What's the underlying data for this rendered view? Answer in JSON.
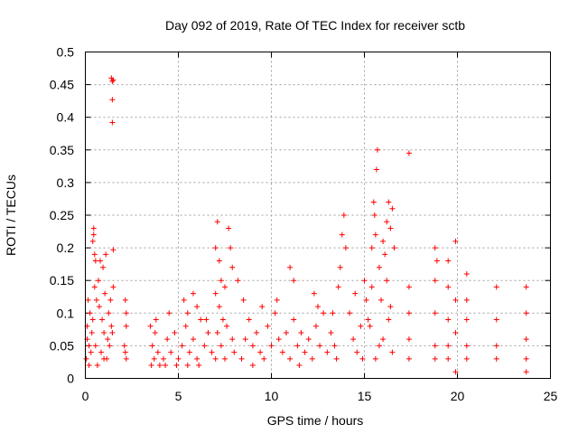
{
  "chart_data": {
    "type": "scatter",
    "title": "Day 092 of 2019, Rate Of TEC Index for receiver sctb",
    "xlabel": "GPS time / hours",
    "ylabel": "ROTI / TECUs",
    "xlim": [
      0,
      25
    ],
    "ylim": [
      0,
      0.5
    ],
    "x_ticks": [
      0,
      5,
      10,
      15,
      20,
      25
    ],
    "y_ticks": [
      0,
      0.05,
      0.1,
      0.15,
      0.2,
      0.25,
      0.3,
      0.35,
      0.4,
      0.45,
      0.5
    ],
    "x_tick_labels": [
      "0",
      "5",
      "10",
      "15",
      "20",
      "25"
    ],
    "y_tick_labels": [
      "0",
      "0.05",
      "0.1",
      "0.15",
      "0.2",
      "0.25",
      "0.3",
      "0.35",
      "0.4",
      "0.45",
      "0.5"
    ],
    "grid": true,
    "legend": "none",
    "marker": "+",
    "color": "#ff0000",
    "series": [
      {
        "points": [
          [
            0.05,
            0.03
          ],
          [
            0.1,
            0.08
          ],
          [
            0.15,
            0.12
          ],
          [
            0.2,
            0.05
          ],
          [
            0.25,
            0.1
          ],
          [
            0.3,
            0.04
          ],
          [
            0.35,
            0.07
          ],
          [
            0.2,
            0.02
          ],
          [
            0.1,
            0.06
          ],
          [
            0.4,
            0.21
          ],
          [
            0.45,
            0.22
          ],
          [
            0.5,
            0.19
          ],
          [
            0.45,
            0.23
          ],
          [
            0.55,
            0.18
          ],
          [
            0.5,
            0.14
          ],
          [
            0.6,
            0.12
          ],
          [
            0.4,
            0.09
          ],
          [
            0.55,
            0.05
          ],
          [
            0.7,
            0.15
          ],
          [
            0.75,
            0.11
          ],
          [
            0.8,
            0.18
          ],
          [
            0.9,
            0.09
          ],
          [
            0.95,
            0.17
          ],
          [
            1.0,
            0.07
          ],
          [
            1.05,
            0.13
          ],
          [
            1.1,
            0.19
          ],
          [
            1.2,
            0.06
          ],
          [
            1.25,
            0.1
          ],
          [
            1.3,
            0.05
          ],
          [
            1.35,
            0.12
          ],
          [
            1.4,
            0.08
          ],
          [
            0.85,
            0.04
          ],
          [
            1.15,
            0.03
          ],
          [
            1.45,
            0.07
          ],
          [
            0.65,
            0.02
          ],
          [
            1.0,
            0.03
          ],
          [
            1.4,
            0.46
          ],
          [
            1.45,
            0.455
          ],
          [
            1.5,
            0.457
          ],
          [
            1.45,
            0.427
          ],
          [
            1.45,
            0.392
          ],
          [
            1.5,
            0.197
          ],
          [
            1.5,
            0.14
          ],
          [
            2.1,
            0.05
          ],
          [
            2.15,
            0.04
          ],
          [
            2.2,
            0.03
          ],
          [
            2.2,
            0.08
          ],
          [
            2.15,
            0.12
          ],
          [
            2.2,
            0.1
          ],
          [
            3.5,
            0.08
          ],
          [
            3.6,
            0.05
          ],
          [
            3.7,
            0.03
          ],
          [
            3.8,
            0.09
          ],
          [
            3.9,
            0.04
          ],
          [
            4.0,
            0.02
          ],
          [
            3.55,
            0.02
          ],
          [
            3.75,
            0.07
          ],
          [
            4.2,
            0.03
          ],
          [
            4.4,
            0.06
          ],
          [
            4.6,
            0.04
          ],
          [
            4.8,
            0.07
          ],
          [
            5.0,
            0.03
          ],
          [
            5.2,
            0.05
          ],
          [
            5.4,
            0.08
          ],
          [
            5.6,
            0.04
          ],
          [
            5.8,
            0.06
          ],
          [
            6.0,
            0.03
          ],
          [
            6.2,
            0.09
          ],
          [
            6.4,
            0.05
          ],
          [
            6.6,
            0.07
          ],
          [
            6.8,
            0.04
          ],
          [
            4.3,
            0.02
          ],
          [
            4.9,
            0.02
          ],
          [
            5.5,
            0.02
          ],
          [
            6.1,
            0.02
          ],
          [
            5.3,
            0.12
          ],
          [
            5.5,
            0.1
          ],
          [
            5.8,
            0.13
          ],
          [
            6.0,
            0.11
          ],
          [
            4.5,
            0.1
          ],
          [
            6.5,
            0.09
          ],
          [
            7.0,
            0.2
          ],
          [
            7.1,
            0.24
          ],
          [
            7.2,
            0.18
          ],
          [
            7.3,
            0.15
          ],
          [
            7.0,
            0.13
          ],
          [
            7.2,
            0.11
          ],
          [
            7.4,
            0.09
          ],
          [
            7.1,
            0.07
          ],
          [
            7.3,
            0.05
          ],
          [
            7.5,
            0.03
          ],
          [
            7.6,
            0.08
          ],
          [
            7.8,
            0.2
          ],
          [
            7.9,
            0.17
          ],
          [
            7.7,
            0.23
          ],
          [
            7.9,
            0.06
          ],
          [
            8.0,
            0.04
          ],
          [
            7.5,
            0.14
          ],
          [
            7.0,
            0.03
          ],
          [
            8.2,
            0.15
          ],
          [
            8.4,
            0.03
          ],
          [
            8.6,
            0.06
          ],
          [
            8.8,
            0.09
          ],
          [
            9.0,
            0.05
          ],
          [
            9.2,
            0.07
          ],
          [
            9.4,
            0.04
          ],
          [
            9.6,
            0.03
          ],
          [
            9.8,
            0.08
          ],
          [
            10.0,
            0.05
          ],
          [
            10.2,
            0.1
          ],
          [
            10.4,
            0.06
          ],
          [
            10.6,
            0.04
          ],
          [
            10.8,
            0.07
          ],
          [
            11.0,
            0.03
          ],
          [
            11.2,
            0.09
          ],
          [
            11.4,
            0.05
          ],
          [
            11.6,
            0.07
          ],
          [
            11.8,
            0.04
          ],
          [
            12.0,
            0.06
          ],
          [
            12.2,
            0.03
          ],
          [
            12.4,
            0.08
          ],
          [
            12.6,
            0.05
          ],
          [
            12.8,
            0.1
          ],
          [
            13.0,
            0.04
          ],
          [
            8.5,
            0.12
          ],
          [
            9.5,
            0.11
          ],
          [
            10.3,
            0.12
          ],
          [
            11.0,
            0.17
          ],
          [
            11.2,
            0.15
          ],
          [
            12.3,
            0.13
          ],
          [
            12.5,
            0.11
          ],
          [
            9.0,
            0.02
          ],
          [
            11.5,
            0.02
          ],
          [
            13.2,
            0.07
          ],
          [
            13.4,
            0.05
          ],
          [
            13.6,
            0.14
          ],
          [
            13.8,
            0.22
          ],
          [
            13.9,
            0.25
          ],
          [
            14.0,
            0.2
          ],
          [
            13.7,
            0.17
          ],
          [
            14.2,
            0.1
          ],
          [
            14.4,
            0.06
          ],
          [
            14.6,
            0.04
          ],
          [
            14.8,
            0.08
          ],
          [
            15.0,
            0.15
          ],
          [
            15.1,
            0.12
          ],
          [
            15.2,
            0.09
          ],
          [
            14.9,
            0.03
          ],
          [
            13.5,
            0.03
          ],
          [
            14.5,
            0.13
          ],
          [
            13.3,
            0.1
          ],
          [
            15.3,
            0.08
          ],
          [
            15.4,
            0.2
          ],
          [
            15.5,
            0.27
          ],
          [
            15.55,
            0.25
          ],
          [
            15.6,
            0.22
          ],
          [
            15.65,
            0.32
          ],
          [
            15.7,
            0.35
          ],
          [
            15.8,
            0.17
          ],
          [
            15.9,
            0.12
          ],
          [
            16.0,
            0.21
          ],
          [
            16.1,
            0.19
          ],
          [
            16.2,
            0.24
          ],
          [
            16.3,
            0.27
          ],
          [
            16.4,
            0.23
          ],
          [
            16.5,
            0.26
          ],
          [
            16.2,
            0.15
          ],
          [
            16.4,
            0.11
          ],
          [
            16.6,
            0.2
          ],
          [
            16.0,
            0.06
          ],
          [
            15.6,
            0.03
          ],
          [
            16.5,
            0.04
          ],
          [
            15.4,
            0.14
          ],
          [
            16.3,
            0.09
          ],
          [
            15.8,
            0.05
          ],
          [
            17.4,
            0.345
          ],
          [
            17.4,
            0.14
          ],
          [
            17.4,
            0.1
          ],
          [
            17.4,
            0.06
          ],
          [
            17.4,
            0.03
          ],
          [
            18.8,
            0.2
          ],
          [
            18.8,
            0.15
          ],
          [
            18.8,
            0.1
          ],
          [
            18.8,
            0.05
          ],
          [
            18.8,
            0.03
          ],
          [
            18.9,
            0.18
          ],
          [
            19.5,
            0.18
          ],
          [
            19.5,
            0.14
          ],
          [
            19.5,
            0.09
          ],
          [
            19.5,
            0.05
          ],
          [
            19.5,
            0.03
          ],
          [
            19.9,
            0.21
          ],
          [
            19.9,
            0.12
          ],
          [
            19.9,
            0.07
          ],
          [
            19.9,
            0.01
          ],
          [
            20.5,
            0.16
          ],
          [
            20.5,
            0.12
          ],
          [
            20.5,
            0.09
          ],
          [
            20.5,
            0.05
          ],
          [
            20.5,
            0.03
          ],
          [
            22.1,
            0.14
          ],
          [
            22.1,
            0.09
          ],
          [
            22.1,
            0.05
          ],
          [
            22.1,
            0.03
          ],
          [
            23.7,
            0.14
          ],
          [
            23.7,
            0.1
          ],
          [
            23.7,
            0.06
          ],
          [
            23.7,
            0.03
          ],
          [
            23.7,
            0.01
          ]
        ]
      }
    ]
  }
}
